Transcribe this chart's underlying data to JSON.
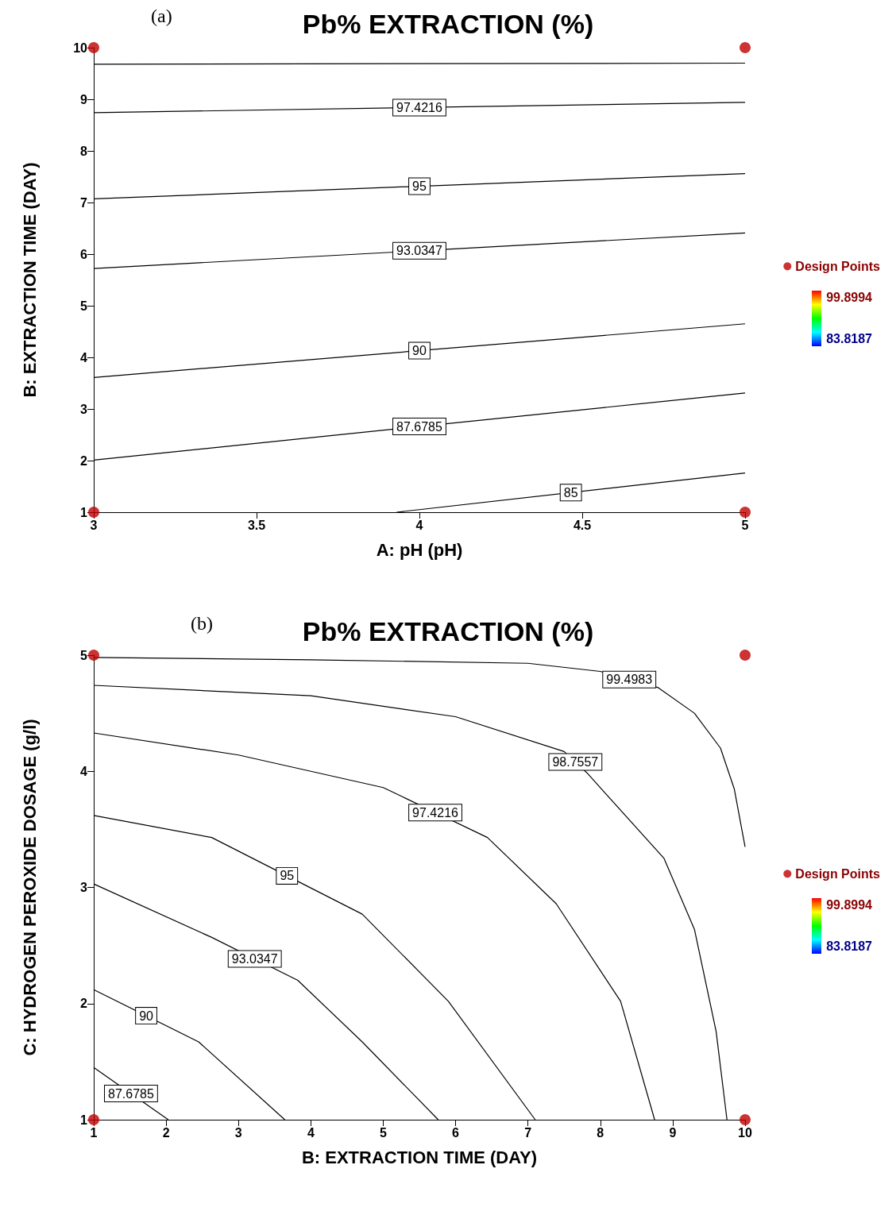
{
  "chart_data": [
    {
      "type": "line",
      "title": "Pb% EXTRACTION (%)",
      "xlabel": "A: pH (pH)",
      "ylabel": "B: EXTRACTION TIME (DAY)",
      "annotations": [
        "(a)",
        "99.8994",
        "83.8187"
      ],
      "xlim": [
        3,
        5
      ],
      "xticks": [
        3,
        3.5,
        4,
        4.5,
        5
      ],
      "ylim": [
        1,
        10
      ],
      "yticks": [
        1,
        2,
        3,
        4,
        5,
        6,
        7,
        8,
        9,
        10
      ],
      "grid": false,
      "legend": "right",
      "marker": "none",
      "series": [
        {
          "color": "#000000",
          "x": [
            3,
            5
          ],
          "values": [
            9.68,
            9.7
          ]
        },
        {
          "name": "97.4216",
          "color": "#000000",
          "x": [
            3,
            5
          ],
          "values": [
            8.74,
            8.94
          ]
        },
        {
          "name": "95",
          "color": "#000000",
          "x": [
            3,
            5
          ],
          "values": [
            7.07,
            7.56
          ]
        },
        {
          "name": "93.0347",
          "color": "#000000",
          "x": [
            3,
            5
          ],
          "values": [
            5.72,
            6.41
          ]
        },
        {
          "name": "90",
          "color": "#000000",
          "x": [
            3,
            5
          ],
          "values": [
            3.61,
            4.65
          ]
        },
        {
          "name": "87.6785",
          "color": "#000000",
          "x": [
            3,
            5
          ],
          "values": [
            2.01,
            3.31
          ]
        },
        {
          "name": "85",
          "color": "#000000",
          "x": [
            3.93,
            5
          ],
          "values": [
            1,
            1.76
          ]
        },
        {
          "name": "Design Points",
          "type": "scatter",
          "marker": "circle",
          "color": "#c00000",
          "x": [
            3,
            5,
            3,
            5
          ],
          "values": [
            1,
            1,
            10,
            10
          ]
        }
      ]
    },
    {
      "type": "line",
      "title": "Pb% EXTRACTION (%)",
      "xlabel": "B: EXTRACTION TIME (DAY)",
      "ylabel": "C: HYDROGEN PEROXIDE DOSAGE (g/l)",
      "annotations": [
        "(b)",
        "99.8994",
        "83.8187"
      ],
      "xlim": [
        1,
        10
      ],
      "xticks": [
        1,
        2,
        3,
        4,
        5,
        6,
        7,
        8,
        9,
        10
      ],
      "ylim": [
        1,
        5
      ],
      "yticks": [
        1,
        2,
        3,
        4,
        5
      ],
      "grid": false,
      "legend": "right",
      "marker": "none",
      "series": [
        {
          "name": "99.4983",
          "color": "#000000",
          "x": [
            1,
            4,
            7,
            8,
            8.8,
            9.3,
            9.66,
            9.85,
            10
          ],
          "values": [
            4.98,
            4.96,
            4.93,
            4.86,
            4.72,
            4.5,
            4.2,
            3.85,
            3.35
          ]
        },
        {
          "name": "98.7557",
          "color": "#000000",
          "x": [
            1,
            4,
            6,
            7.5,
            7.81,
            8.88,
            9.3,
            9.6,
            9.75
          ],
          "values": [
            4.74,
            4.65,
            4.47,
            4.17,
            3.99,
            3.25,
            2.64,
            1.76,
            1
          ]
        },
        {
          "name": "97.4216",
          "color": "#000000",
          "x": [
            1,
            3,
            5,
            6.44,
            7.39,
            8.28,
            8.75
          ],
          "values": [
            4.33,
            4.14,
            3.86,
            3.43,
            2.86,
            2.02,
            1
          ]
        },
        {
          "name": "95",
          "color": "#000000",
          "x": [
            1,
            2.63,
            4.71,
            5.9,
            7.1
          ],
          "values": [
            3.62,
            3.43,
            2.77,
            2.02,
            1
          ]
        },
        {
          "name": "93.0347",
          "color": "#000000",
          "x": [
            1,
            2.63,
            3.82,
            4.71,
            5.76
          ],
          "values": [
            3.03,
            2.57,
            2.2,
            1.67,
            1
          ]
        },
        {
          "name": "90",
          "color": "#000000",
          "x": [
            1,
            2.45,
            3.64
          ],
          "values": [
            2.12,
            1.67,
            1
          ]
        },
        {
          "name": "87.6785",
          "color": "#000000",
          "x": [
            1,
            2.03
          ],
          "values": [
            1.45,
            1
          ]
        },
        {
          "name": "Design Points",
          "type": "scatter",
          "marker": "circle",
          "color": "#c00000",
          "x": [
            1,
            10,
            1,
            10
          ],
          "values": [
            1,
            1,
            5,
            5
          ]
        }
      ]
    }
  ]
}
